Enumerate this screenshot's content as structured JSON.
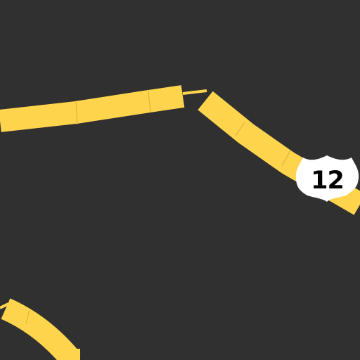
{
  "map": {
    "background_color": "#303030",
    "road_color": "#FFD44D",
    "road_edge_color": "#D8AF33",
    "shield": {
      "route_number": "12",
      "icon": "us-highway-shield-icon",
      "fill_color": "#FFFFFF",
      "text_color": "#000000"
    }
  }
}
